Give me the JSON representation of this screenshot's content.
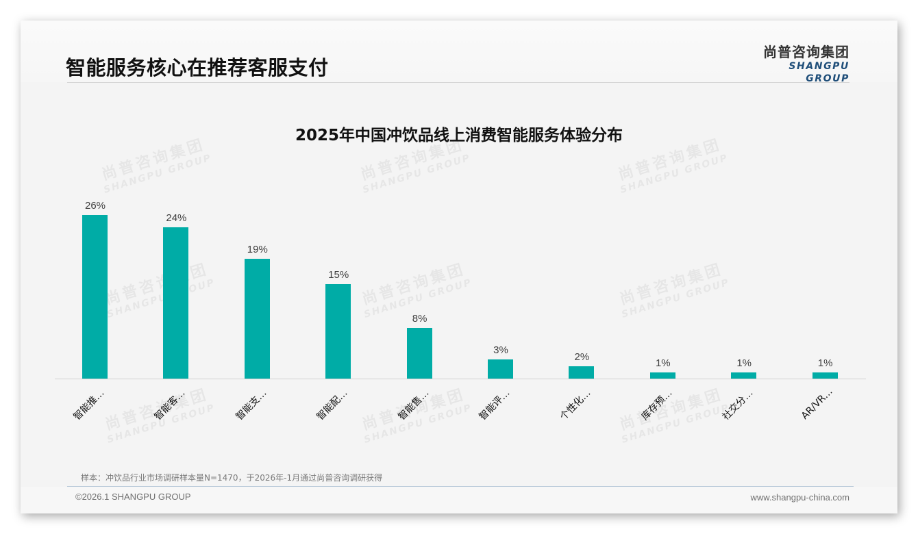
{
  "header": {
    "title": "智能服务核心在推荐客服支付",
    "logo_cn": "尚普咨询集团",
    "logo_en": "SHANGPU GROUP"
  },
  "watermark": {
    "cn": "尚普咨询集团",
    "en": "SHANGPU GROUP"
  },
  "chart_data": {
    "type": "bar",
    "title": "2025年中国冲饮品线上消费智能服务体验分布",
    "categories": [
      "智能推…",
      "智能客…",
      "智能支…",
      "智能配…",
      "智能售…",
      "智能评…",
      "个性化…",
      "库存预…",
      "社交分…",
      "AR/VR…"
    ],
    "values": [
      26,
      24,
      19,
      15,
      8,
      3,
      2,
      1,
      1,
      1
    ],
    "value_labels": [
      "26%",
      "24%",
      "19%",
      "15%",
      "8%",
      "3%",
      "2%",
      "1%",
      "1%",
      "1%"
    ],
    "unit": "%",
    "xlabel": "",
    "ylabel": "",
    "ylim": [
      0,
      30
    ],
    "grid": false,
    "legend": null,
    "bar_color": "#00aca6"
  },
  "footer": {
    "sample_note": "样本：冲饮品行业市场调研样本量N=1470，于2026年-1月通过尚普咨询调研获得",
    "copyright": "©2026.1 SHANGPU GROUP",
    "website": "www.shangpu-china.com"
  }
}
